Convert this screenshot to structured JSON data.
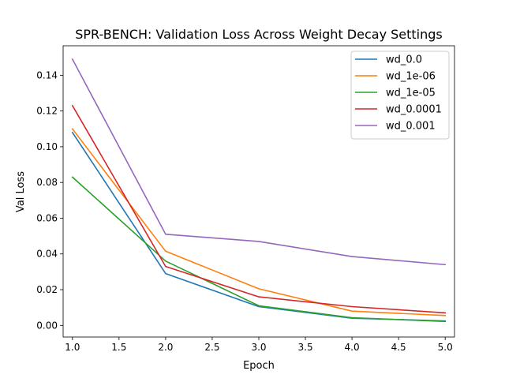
{
  "chart_data": {
    "type": "line",
    "title": "SPR-BENCH: Validation Loss Across Weight Decay Settings",
    "xlabel": "Epoch",
    "ylabel": "Val Loss",
    "xlim": [
      0.9,
      5.1
    ],
    "ylim": [
      -0.0065,
      0.1565
    ],
    "xticks": [
      "1.0",
      "1.5",
      "2.0",
      "2.5",
      "3.0",
      "3.5",
      "4.0",
      "4.5",
      "5.0"
    ],
    "yticks": [
      "0.00",
      "0.02",
      "0.04",
      "0.06",
      "0.08",
      "0.10",
      "0.12",
      "0.14"
    ],
    "grid": false,
    "legend_position": "top-right",
    "x": [
      1,
      2,
      3,
      4,
      5
    ],
    "series": [
      {
        "name": "wd_0.0",
        "color": "#1f77b4",
        "values": [
          0.108,
          0.029,
          0.0105,
          0.004,
          0.0025
        ]
      },
      {
        "name": "wd_1e-06",
        "color": "#ff7f0e",
        "values": [
          0.11,
          0.0415,
          0.0205,
          0.008,
          0.0055
        ]
      },
      {
        "name": "wd_1e-05",
        "color": "#2ca02c",
        "values": [
          0.083,
          0.036,
          0.011,
          0.0043,
          0.0022
        ]
      },
      {
        "name": "wd_0.0001",
        "color": "#d62728",
        "values": [
          0.123,
          0.033,
          0.016,
          0.0105,
          0.007
        ]
      },
      {
        "name": "wd_0.001",
        "color": "#9467bd",
        "values": [
          0.149,
          0.051,
          0.047,
          0.0385,
          0.034
        ]
      }
    ]
  }
}
